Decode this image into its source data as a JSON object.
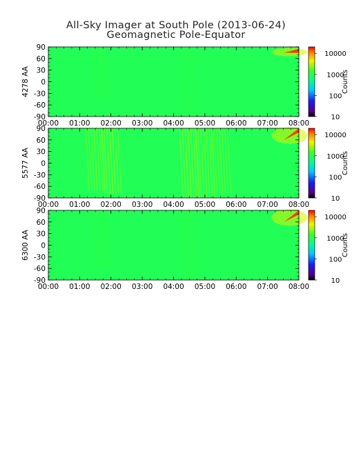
{
  "title": "All-Sky Imager at South Pole (2013-06-24)",
  "subtitle": "Geomagnetic Pole-Equator",
  "colorbar_label": "Counts",
  "colorbar_ticks": [
    "10000",
    "1000",
    "100",
    "10"
  ],
  "chart_data": [
    {
      "type": "heatmap",
      "ylabel": "4278 AA",
      "x_ticks": [
        "00:00",
        "01:00",
        "02:00",
        "03:00",
        "04:00",
        "05:00",
        "06:00",
        "07:00",
        "08:00"
      ],
      "y_ticks": [
        "90",
        "60",
        "30",
        "0",
        "-30",
        "-60",
        "-90"
      ],
      "xlim": [
        "00:00",
        "08:00"
      ],
      "ylim": [
        -90,
        90
      ],
      "colorbar": {
        "label": "Counts",
        "scale": "log",
        "range": [
          10,
          20000
        ],
        "ticks": [
          10,
          100,
          1000,
          10000
        ]
      },
      "background_counts": 900,
      "features": [
        {
          "time": "01:40",
          "lat": [
            -40,
            90
          ],
          "counts": 1200
        },
        {
          "time": "04:30",
          "lat": [
            -90,
            90
          ],
          "counts": 1100
        },
        {
          "time": "07:50",
          "lat": [
            75,
            85
          ],
          "counts": 15000
        }
      ]
    },
    {
      "type": "heatmap",
      "ylabel": "5577 AA",
      "x_ticks": [
        "00:00",
        "01:00",
        "02:00",
        "03:00",
        "04:00",
        "05:00",
        "06:00",
        "07:00",
        "08:00"
      ],
      "y_ticks": [
        "90",
        "60",
        "30",
        "0",
        "-30",
        "-60",
        "-90"
      ],
      "xlim": [
        "00:00",
        "08:00"
      ],
      "ylim": [
        -90,
        90
      ],
      "colorbar": {
        "label": "Counts",
        "scale": "log",
        "range": [
          10,
          20000
        ],
        "ticks": [
          10,
          100,
          1000,
          10000
        ]
      },
      "background_counts": 900,
      "features": [
        {
          "time": "01:30",
          "lat": [
            -70,
            90
          ],
          "counts": 2500
        },
        {
          "time": "02:00",
          "lat": [
            -80,
            90
          ],
          "counts": 3000
        },
        {
          "time": "04:30",
          "lat": [
            -90,
            90
          ],
          "counts": 3000
        },
        {
          "time": "05:00",
          "lat": [
            -90,
            90
          ],
          "counts": 2500
        },
        {
          "time": "05:30",
          "lat": [
            -80,
            90
          ],
          "counts": 2200
        },
        {
          "time": "07:50",
          "lat": [
            60,
            90
          ],
          "counts": 15000
        }
      ]
    },
    {
      "type": "heatmap",
      "ylabel": "6300 AA",
      "x_ticks": [
        "00:00",
        "01:00",
        "02:00",
        "03:00",
        "04:00",
        "05:00",
        "06:00",
        "07:00",
        "08:00"
      ],
      "y_ticks": [
        "90",
        "60",
        "30",
        "0",
        "-30",
        "-60",
        "-90"
      ],
      "xlim": [
        "00:00",
        "08:00"
      ],
      "ylim": [
        -90,
        90
      ],
      "colorbar": {
        "label": "Counts",
        "scale": "log",
        "range": [
          10,
          20000
        ],
        "ticks": [
          10,
          100,
          1000,
          10000
        ]
      },
      "background_counts": 900,
      "features": [
        {
          "time": "01:40",
          "lat": [
            -60,
            90
          ],
          "counts": 1200
        },
        {
          "time": "04:30",
          "lat": [
            -90,
            90
          ],
          "counts": 1200
        },
        {
          "time": "07:50",
          "lat": [
            60,
            90
          ],
          "counts": 15000
        }
      ]
    }
  ]
}
